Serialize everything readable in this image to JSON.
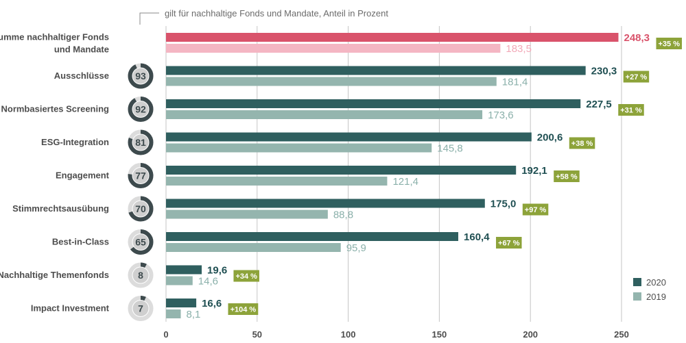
{
  "chart_data": {
    "type": "bar",
    "orientation": "horizontal",
    "note": "gilt für nachhaltige Fonds und Mandate, Anteil in Prozent",
    "categories": [
      "Summe nachhaltiger Fonds und Mandate",
      "Ausschlüsse",
      "Normbasiertes Screening",
      "ESG-Integration",
      "Engagement",
      "Stimmrechtsausübung",
      "Best-in-Class",
      "Nachhaltige Themenfonds",
      "Impact Investment"
    ],
    "series": [
      {
        "name": "2020",
        "values": [
          248.3,
          230.3,
          227.5,
          200.6,
          192.1,
          175.0,
          160.4,
          19.6,
          16.6
        ]
      },
      {
        "name": "2019",
        "values": [
          183.5,
          181.4,
          173.6,
          145.8,
          121.4,
          88.8,
          95.9,
          14.6,
          8.1
        ]
      }
    ],
    "value_labels_2020": [
      "248,3",
      "230,3",
      "227,5",
      "200,6",
      "192,1",
      "175,0",
      "160,4",
      "19,6",
      "16,6"
    ],
    "value_labels_2019": [
      "183,5",
      "181,4",
      "173,6",
      "145,8",
      "121,4",
      "88,8",
      "95,9",
      "14,6",
      "8,1"
    ],
    "growth_labels": [
      "+35 %",
      "+27 %",
      "+31 %",
      "+38 %",
      "+58 %",
      "+97 %",
      "+67 %",
      "+34 %",
      "+104 %"
    ],
    "share_percent": [
      null,
      93,
      92,
      81,
      77,
      70,
      65,
      8,
      7
    ],
    "xlim": [
      0,
      250
    ],
    "xticks": [
      0,
      50,
      100,
      150,
      200,
      250
    ],
    "grid": true,
    "legend_position": "bottom-right",
    "highlight_category": "Summe nachhaltiger Fonds und Mandate",
    "colors": {
      "series_2020": "#2f5f5f",
      "series_2019": "#94b5ae",
      "highlight_2020": "#d9536b",
      "highlight_2019": "#f4b6c3",
      "badge": "#8da33a",
      "donut_track": "#dcdcdc",
      "donut_fill": "#3d4a4d"
    }
  }
}
